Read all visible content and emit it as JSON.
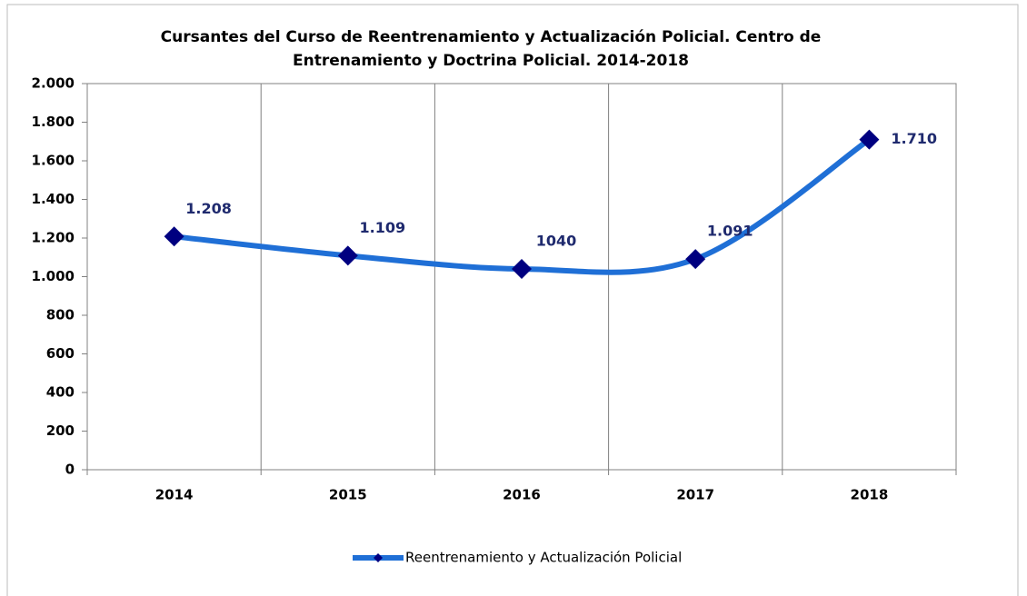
{
  "chart_data": {
    "type": "line",
    "title": "Cursantes del Curso de Reentrenamiento y Actualización Policial. Centro de Entrenamiento y Doctrina Policial. 2014-2018",
    "categories": [
      "2014",
      "2015",
      "2016",
      "2017",
      "2018"
    ],
    "series": [
      {
        "name": "Reentrenamiento y Actualización Policial",
        "color": "#1f6fd6",
        "marker_color": "#000080",
        "values": [
          1208,
          1109,
          1040,
          1091,
          1710
        ],
        "value_labels": [
          "1.208",
          "1.109",
          "1040",
          "1.091",
          "1.710"
        ]
      }
    ],
    "ylim": [
      0,
      2000
    ],
    "yticks": [
      0,
      200,
      400,
      600,
      800,
      {
        "value": 1000,
        "label": "1.000"
      },
      {
        "value": 1200,
        "label": "1.200"
      },
      {
        "value": 1400,
        "label": "1.400"
      },
      {
        "value": 1600,
        "label": "1.600"
      },
      {
        "value": 1800,
        "label": "1.800"
      },
      {
        "value": 2000,
        "label": "2.000"
      }
    ],
    "legend": "bottom"
  }
}
